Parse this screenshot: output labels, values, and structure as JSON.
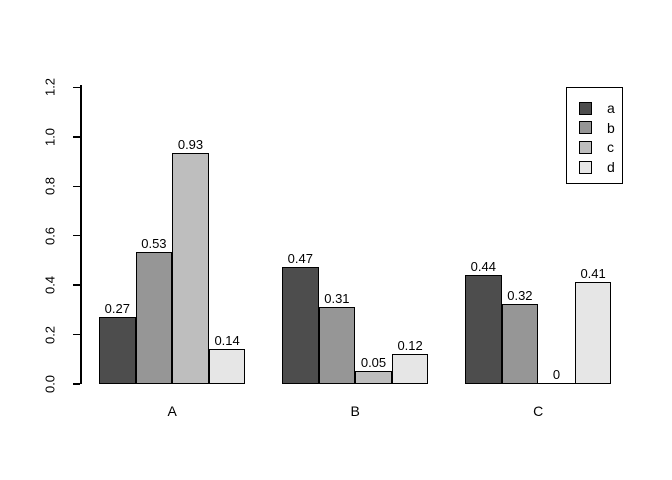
{
  "chart_data": {
    "type": "bar",
    "title": "",
    "xlabel": "",
    "ylabel": "",
    "categories": [
      "A",
      "B",
      "C"
    ],
    "series": [
      {
        "name": "a",
        "color": "#4D4D4D",
        "values": [
          0.27,
          0.47,
          0.44
        ],
        "labels": [
          "0.27",
          "0.47",
          "0.44"
        ]
      },
      {
        "name": "b",
        "color": "#969696",
        "values": [
          0.53,
          0.31,
          0.32
        ],
        "labels": [
          "0.53",
          "0.31",
          "0.32"
        ]
      },
      {
        "name": "c",
        "color": "#BEBEBE",
        "values": [
          0.93,
          0.05,
          0.0
        ],
        "labels": [
          "0.93",
          "0.05",
          "0"
        ]
      },
      {
        "name": "d",
        "color": "#E6E6E6",
        "values": [
          0.14,
          0.12,
          0.41
        ],
        "labels": [
          "0.14",
          "0.12",
          "0.41"
        ]
      }
    ],
    "y_ticks": [
      "0.0",
      "0.2",
      "0.4",
      "0.6",
      "0.8",
      "1.0",
      "1.2"
    ],
    "ylim": [
      0.0,
      1.2
    ],
    "grid": false,
    "legend": {
      "position": "top-right",
      "labels": [
        "a",
        "b",
        "c",
        "d"
      ]
    },
    "bar_border_color": "#000000",
    "axis_color": "#000000",
    "background_color": "#FFFFFF"
  }
}
